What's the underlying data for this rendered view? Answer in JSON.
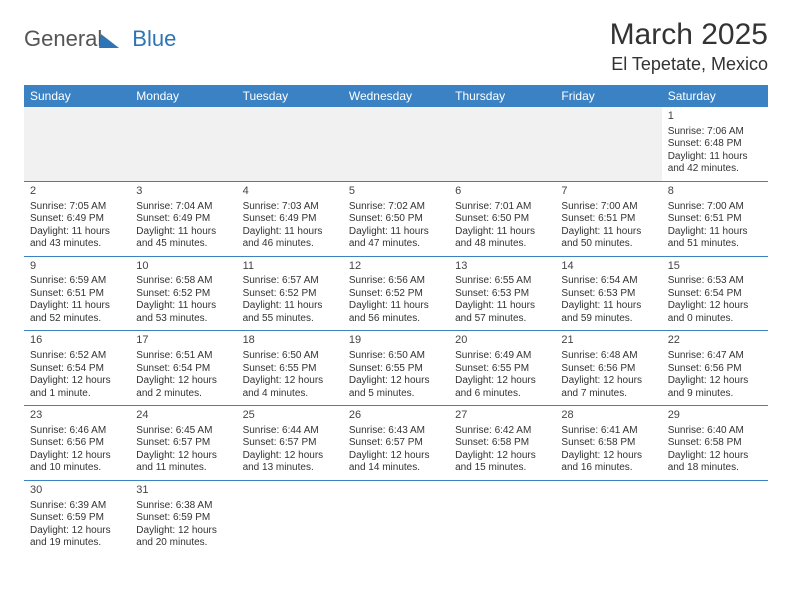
{
  "logo": {
    "text1": "General",
    "text2": "Blue"
  },
  "title": "March 2025",
  "location": "El Tepetate, Mexico",
  "weekdays": [
    "Sunday",
    "Monday",
    "Tuesday",
    "Wednesday",
    "Thursday",
    "Friday",
    "Saturday"
  ],
  "colors": {
    "header_bg": "#3b82c4",
    "header_text": "#ffffff",
    "blank_bg": "#f1f1f1",
    "rule": "#3b82c4",
    "text": "#333333",
    "logo_blue": "#2f74b5"
  },
  "weeks": [
    [
      null,
      null,
      null,
      null,
      null,
      null,
      {
        "n": "1",
        "sr": "Sunrise: 7:06 AM",
        "ss": "Sunset: 6:48 PM",
        "d1": "Daylight: 11 hours",
        "d2": "and 42 minutes."
      }
    ],
    [
      {
        "n": "2",
        "sr": "Sunrise: 7:05 AM",
        "ss": "Sunset: 6:49 PM",
        "d1": "Daylight: 11 hours",
        "d2": "and 43 minutes."
      },
      {
        "n": "3",
        "sr": "Sunrise: 7:04 AM",
        "ss": "Sunset: 6:49 PM",
        "d1": "Daylight: 11 hours",
        "d2": "and 45 minutes."
      },
      {
        "n": "4",
        "sr": "Sunrise: 7:03 AM",
        "ss": "Sunset: 6:49 PM",
        "d1": "Daylight: 11 hours",
        "d2": "and 46 minutes."
      },
      {
        "n": "5",
        "sr": "Sunrise: 7:02 AM",
        "ss": "Sunset: 6:50 PM",
        "d1": "Daylight: 11 hours",
        "d2": "and 47 minutes."
      },
      {
        "n": "6",
        "sr": "Sunrise: 7:01 AM",
        "ss": "Sunset: 6:50 PM",
        "d1": "Daylight: 11 hours",
        "d2": "and 48 minutes."
      },
      {
        "n": "7",
        "sr": "Sunrise: 7:00 AM",
        "ss": "Sunset: 6:51 PM",
        "d1": "Daylight: 11 hours",
        "d2": "and 50 minutes."
      },
      {
        "n": "8",
        "sr": "Sunrise: 7:00 AM",
        "ss": "Sunset: 6:51 PM",
        "d1": "Daylight: 11 hours",
        "d2": "and 51 minutes."
      }
    ],
    [
      {
        "n": "9",
        "sr": "Sunrise: 6:59 AM",
        "ss": "Sunset: 6:51 PM",
        "d1": "Daylight: 11 hours",
        "d2": "and 52 minutes."
      },
      {
        "n": "10",
        "sr": "Sunrise: 6:58 AM",
        "ss": "Sunset: 6:52 PM",
        "d1": "Daylight: 11 hours",
        "d2": "and 53 minutes."
      },
      {
        "n": "11",
        "sr": "Sunrise: 6:57 AM",
        "ss": "Sunset: 6:52 PM",
        "d1": "Daylight: 11 hours",
        "d2": "and 55 minutes."
      },
      {
        "n": "12",
        "sr": "Sunrise: 6:56 AM",
        "ss": "Sunset: 6:52 PM",
        "d1": "Daylight: 11 hours",
        "d2": "and 56 minutes."
      },
      {
        "n": "13",
        "sr": "Sunrise: 6:55 AM",
        "ss": "Sunset: 6:53 PM",
        "d1": "Daylight: 11 hours",
        "d2": "and 57 minutes."
      },
      {
        "n": "14",
        "sr": "Sunrise: 6:54 AM",
        "ss": "Sunset: 6:53 PM",
        "d1": "Daylight: 11 hours",
        "d2": "and 59 minutes."
      },
      {
        "n": "15",
        "sr": "Sunrise: 6:53 AM",
        "ss": "Sunset: 6:54 PM",
        "d1": "Daylight: 12 hours",
        "d2": "and 0 minutes."
      }
    ],
    [
      {
        "n": "16",
        "sr": "Sunrise: 6:52 AM",
        "ss": "Sunset: 6:54 PM",
        "d1": "Daylight: 12 hours",
        "d2": "and 1 minute."
      },
      {
        "n": "17",
        "sr": "Sunrise: 6:51 AM",
        "ss": "Sunset: 6:54 PM",
        "d1": "Daylight: 12 hours",
        "d2": "and 2 minutes."
      },
      {
        "n": "18",
        "sr": "Sunrise: 6:50 AM",
        "ss": "Sunset: 6:55 PM",
        "d1": "Daylight: 12 hours",
        "d2": "and 4 minutes."
      },
      {
        "n": "19",
        "sr": "Sunrise: 6:50 AM",
        "ss": "Sunset: 6:55 PM",
        "d1": "Daylight: 12 hours",
        "d2": "and 5 minutes."
      },
      {
        "n": "20",
        "sr": "Sunrise: 6:49 AM",
        "ss": "Sunset: 6:55 PM",
        "d1": "Daylight: 12 hours",
        "d2": "and 6 minutes."
      },
      {
        "n": "21",
        "sr": "Sunrise: 6:48 AM",
        "ss": "Sunset: 6:56 PM",
        "d1": "Daylight: 12 hours",
        "d2": "and 7 minutes."
      },
      {
        "n": "22",
        "sr": "Sunrise: 6:47 AM",
        "ss": "Sunset: 6:56 PM",
        "d1": "Daylight: 12 hours",
        "d2": "and 9 minutes."
      }
    ],
    [
      {
        "n": "23",
        "sr": "Sunrise: 6:46 AM",
        "ss": "Sunset: 6:56 PM",
        "d1": "Daylight: 12 hours",
        "d2": "and 10 minutes."
      },
      {
        "n": "24",
        "sr": "Sunrise: 6:45 AM",
        "ss": "Sunset: 6:57 PM",
        "d1": "Daylight: 12 hours",
        "d2": "and 11 minutes."
      },
      {
        "n": "25",
        "sr": "Sunrise: 6:44 AM",
        "ss": "Sunset: 6:57 PM",
        "d1": "Daylight: 12 hours",
        "d2": "and 13 minutes."
      },
      {
        "n": "26",
        "sr": "Sunrise: 6:43 AM",
        "ss": "Sunset: 6:57 PM",
        "d1": "Daylight: 12 hours",
        "d2": "and 14 minutes."
      },
      {
        "n": "27",
        "sr": "Sunrise: 6:42 AM",
        "ss": "Sunset: 6:58 PM",
        "d1": "Daylight: 12 hours",
        "d2": "and 15 minutes."
      },
      {
        "n": "28",
        "sr": "Sunrise: 6:41 AM",
        "ss": "Sunset: 6:58 PM",
        "d1": "Daylight: 12 hours",
        "d2": "and 16 minutes."
      },
      {
        "n": "29",
        "sr": "Sunrise: 6:40 AM",
        "ss": "Sunset: 6:58 PM",
        "d1": "Daylight: 12 hours",
        "d2": "and 18 minutes."
      }
    ],
    [
      {
        "n": "30",
        "sr": "Sunrise: 6:39 AM",
        "ss": "Sunset: 6:59 PM",
        "d1": "Daylight: 12 hours",
        "d2": "and 19 minutes."
      },
      {
        "n": "31",
        "sr": "Sunrise: 6:38 AM",
        "ss": "Sunset: 6:59 PM",
        "d1": "Daylight: 12 hours",
        "d2": "and 20 minutes."
      },
      null,
      null,
      null,
      null,
      null
    ]
  ]
}
